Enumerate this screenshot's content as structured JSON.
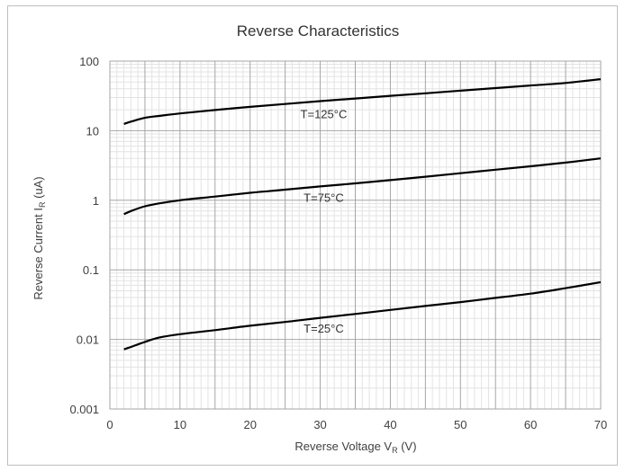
{
  "chart_data": {
    "type": "line",
    "title": "Reverse Characteristics",
    "xlabel": {
      "main": "Reverse Voltage V",
      "sub": "R",
      "unit": " (V)"
    },
    "ylabel": {
      "main": "Reverse Current I",
      "sub": "R",
      "unit": " (uA)"
    },
    "xlim": [
      0,
      70
    ],
    "ylim": [
      0.001,
      100
    ],
    "y_scale": "log",
    "grid": true,
    "x_ticks": [
      0,
      10,
      20,
      30,
      40,
      50,
      60,
      70
    ],
    "x_tick_labels": [
      "0",
      "10",
      "20",
      "30",
      "40",
      "50",
      "60",
      "70"
    ],
    "y_ticks": [
      0.001,
      0.01,
      0.1,
      1,
      10,
      100
    ],
    "y_tick_labels": [
      "0.001",
      "0.01",
      "0.1",
      "1",
      "10",
      "100"
    ],
    "series": [
      {
        "label": "T=125°C",
        "color": "#000000",
        "x": [
          2,
          3,
          5,
          7,
          10,
          15,
          20,
          25,
          30,
          35,
          40,
          45,
          50,
          55,
          60,
          65,
          70
        ],
        "y": [
          12.5,
          13.5,
          15.3,
          16.3,
          17.7,
          19.8,
          22.0,
          24.2,
          26.6,
          29.0,
          31.7,
          34.5,
          37.6,
          41.0,
          44.6,
          48.6,
          55.0
        ]
      },
      {
        "label": "T=75°C",
        "color": "#000000",
        "x": [
          2,
          3,
          5,
          7,
          10,
          15,
          20,
          25,
          30,
          35,
          40,
          45,
          50,
          55,
          60,
          65,
          70
        ],
        "y": [
          0.63,
          0.7,
          0.82,
          0.9,
          1.0,
          1.13,
          1.28,
          1.42,
          1.58,
          1.75,
          1.95,
          2.18,
          2.45,
          2.75,
          3.08,
          3.48,
          4.0
        ]
      },
      {
        "label": "T=25°C",
        "color": "#000000",
        "x": [
          2,
          3,
          5,
          7,
          10,
          15,
          20,
          25,
          30,
          35,
          40,
          45,
          50,
          55,
          60,
          65,
          70
        ],
        "y": [
          0.0072,
          0.0078,
          0.0092,
          0.0106,
          0.0119,
          0.0136,
          0.0157,
          0.0178,
          0.0204,
          0.0232,
          0.0265,
          0.0302,
          0.0344,
          0.0395,
          0.0455,
          0.0545,
          0.0665
        ]
      }
    ],
    "annotations": [
      {
        "text": "T=125°C",
        "x": 30.5,
        "y": 17.5
      },
      {
        "text": "T=75°C",
        "x": 30.5,
        "y": 1.1
      },
      {
        "text": "T=25°C",
        "x": 30.5,
        "y": 0.0145
      }
    ]
  }
}
